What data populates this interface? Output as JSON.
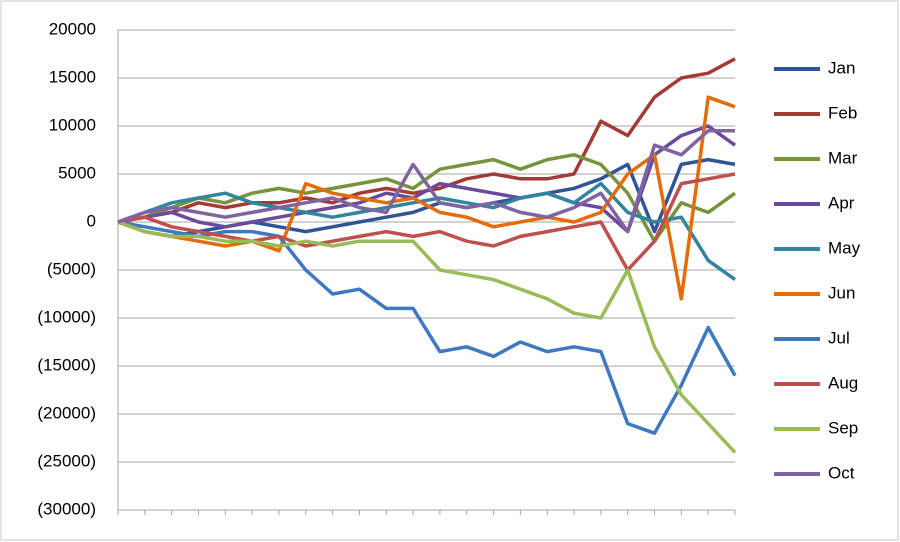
{
  "chart_data": {
    "type": "line",
    "categories": [
      null,
      null,
      null,
      null,
      null,
      null,
      null,
      null,
      null,
      null,
      null,
      null,
      null,
      null,
      null,
      null,
      null,
      null,
      null,
      null,
      null,
      null,
      null,
      null
    ],
    "series": [
      {
        "name": "Jan",
        "color": "#2f5597",
        "values": [
          0,
          -1000,
          -1500,
          -1000,
          -500,
          0,
          -500,
          -1000,
          -500,
          0,
          500,
          1000,
          2000,
          1500,
          2000,
          2500,
          3000,
          3500,
          4500,
          6000,
          -1000,
          6000,
          6500,
          6000
        ]
      },
      {
        "name": "Feb",
        "color": "#a33a36",
        "values": [
          0,
          500,
          1000,
          2000,
          1500,
          2000,
          2000,
          2500,
          2000,
          3000,
          3500,
          3000,
          3500,
          4500,
          5000,
          4500,
          4500,
          5000,
          10500,
          9000,
          13000,
          15000,
          15500,
          17000
        ]
      },
      {
        "name": "Mar",
        "color": "#77933c",
        "values": [
          0,
          500,
          1500,
          2500,
          2000,
          3000,
          3500,
          3000,
          3500,
          4000,
          4500,
          3500,
          5500,
          6000,
          6500,
          5500,
          6500,
          7000,
          6000,
          3000,
          -2000,
          2000,
          1000,
          3000
        ]
      },
      {
        "name": "Apr",
        "color": "#6a4a9c",
        "values": [
          0,
          500,
          1000,
          0,
          -500,
          0,
          500,
          1000,
          1500,
          2000,
          3000,
          2500,
          4000,
          3500,
          3000,
          2500,
          3000,
          2000,
          1500,
          -1000,
          7000,
          9000,
          10000,
          8000
        ]
      },
      {
        "name": "May",
        "color": "#31859c",
        "values": [
          0,
          1000,
          2000,
          2500,
          3000,
          2000,
          1500,
          1000,
          500,
          1000,
          1500,
          2000,
          2500,
          2000,
          1500,
          2500,
          3000,
          2000,
          4000,
          1000,
          0,
          500,
          -4000,
          -6000
        ]
      },
      {
        "name": "Jun",
        "color": "#e46c0a",
        "values": [
          0,
          -1000,
          -1500,
          -2000,
          -2500,
          -2000,
          -3000,
          4000,
          3000,
          2500,
          2000,
          2500,
          1000,
          500,
          -500,
          0,
          500,
          0,
          1000,
          5000,
          7000,
          -8000,
          13000,
          12000
        ]
      },
      {
        "name": "Jul",
        "color": "#3e78c0",
        "values": [
          0,
          -500,
          -1000,
          -1500,
          -1000,
          -1000,
          -1500,
          -5000,
          -7500,
          -7000,
          -9000,
          -9000,
          -13500,
          -13000,
          -14000,
          -12500,
          -13500,
          -13000,
          -13500,
          -21000,
          -22000,
          -17000,
          -11000,
          -16000
        ]
      },
      {
        "name": "Aug",
        "color": "#c0504d",
        "values": [
          0,
          500,
          -500,
          -1000,
          -1500,
          -2000,
          -1500,
          -2500,
          -2000,
          -1500,
          -1000,
          -1500,
          -1000,
          -2000,
          -2500,
          -1500,
          -1000,
          -500,
          0,
          -5000,
          -2000,
          4000,
          4500,
          5000
        ]
      },
      {
        "name": "Sep",
        "color": "#9bbb59",
        "values": [
          0,
          -1000,
          -1500,
          -1500,
          -2000,
          -2000,
          -2500,
          -2000,
          -2500,
          -2000,
          -2000,
          -2000,
          -5000,
          -5500,
          -6000,
          -7000,
          -8000,
          -9500,
          -10000,
          -5000,
          -13000,
          -18000,
          -21000,
          -24000
        ]
      },
      {
        "name": "Oct",
        "color": "#8064a2",
        "values": [
          0,
          1000,
          1500,
          1000,
          500,
          1000,
          1500,
          2000,
          2500,
          1500,
          1000,
          6000,
          2000,
          1500,
          2000,
          1000,
          500,
          1500,
          3000,
          -1000,
          8000,
          7000,
          9500,
          9500
        ]
      }
    ],
    "ylim": [
      -30000,
      20000
    ],
    "yticks": [
      20000,
      15000,
      10000,
      5000,
      0,
      {
        "value": -5000,
        "label": "(5000)"
      },
      {
        "value": -10000,
        "label": "(10000)"
      },
      {
        "value": -15000,
        "label": "(15000)"
      },
      {
        "value": -20000,
        "label": "(20000)"
      },
      {
        "value": -25000,
        "label": "(25000)"
      },
      {
        "value": -30000,
        "label": "(30000)"
      }
    ],
    "negative_tick_color": "#ff0000",
    "grid": true,
    "legend": "right"
  }
}
